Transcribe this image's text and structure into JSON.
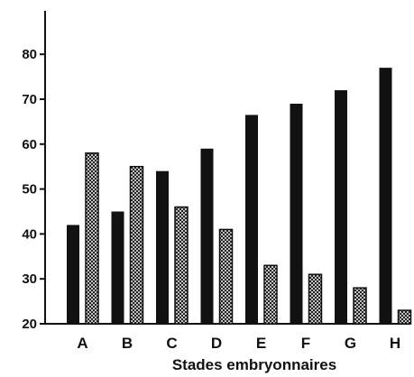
{
  "chart_data": {
    "type": "bar",
    "categories": [
      "A",
      "B",
      "C",
      "D",
      "E",
      "F",
      "G",
      "H"
    ],
    "series": [
      {
        "values": [
          42,
          45,
          54,
          59,
          66.5,
          69,
          72,
          77
        ],
        "pattern": "solid",
        "color": "#111111"
      },
      {
        "values": [
          58,
          55,
          46,
          41,
          33,
          31,
          28,
          23
        ],
        "pattern": "crosshatch",
        "color": "#111111"
      }
    ],
    "title": "",
    "xlabel": "Stades embryonnaires",
    "ylabel": "",
    "ylim": [
      20,
      90
    ],
    "yticks": [
      20,
      30,
      40,
      50,
      60,
      70,
      80
    ],
    "grid": false,
    "legend": "none"
  }
}
